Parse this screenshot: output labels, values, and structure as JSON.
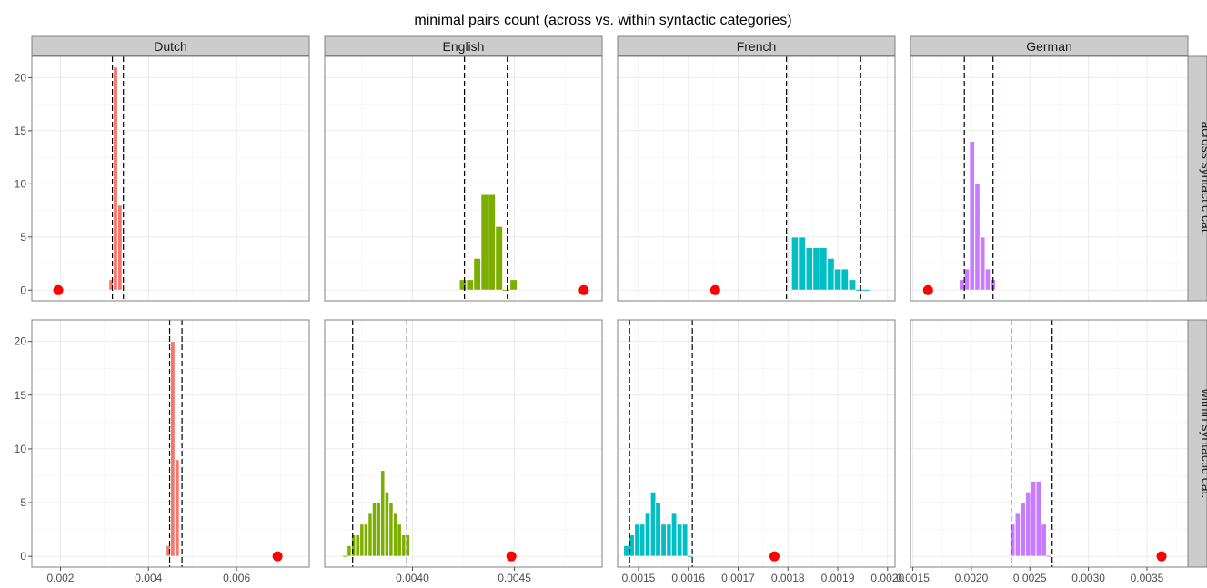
{
  "chart_data": {
    "type": "histogram-facet",
    "title": "minimal pairs count (across vs. within syntactic categories)",
    "columns": [
      "Dutch",
      "English",
      "French",
      "German"
    ],
    "rows": [
      "across syntactic cat.",
      "within syntactic cat."
    ],
    "ylim": [
      -1,
      22
    ],
    "y_ticks": [
      0,
      5,
      10,
      15,
      20
    ],
    "grid": true,
    "colors": {
      "Dutch": "#F8766D",
      "English": "#7CAE00",
      "French": "#00BFC4",
      "German": "#C77CFF",
      "point": "#FF0000",
      "vline": "#000000"
    },
    "x_axes": [
      {
        "range": [
          0.00135,
          0.00765
        ],
        "ticks": [
          0.002,
          0.004,
          0.006
        ],
        "tick_labels": [
          "0.002",
          "0.004",
          "0.006"
        ]
      },
      {
        "range": [
          0.00357,
          0.00493
        ],
        "ticks": [
          0.004,
          0.0045
        ],
        "tick_labels": [
          "0.0040",
          "0.0045"
        ]
      },
      {
        "range": [
          0.001458,
          0.002015
        ],
        "ticks": [
          0.0015,
          0.0016,
          0.0017,
          0.0018,
          0.0019,
          0.002
        ],
        "tick_labels": [
          "0.0015",
          "0.0016",
          "0.0017",
          "0.0018",
          "0.0019",
          "0.0020"
        ]
      },
      {
        "range": [
          0.00148,
          0.00385
        ],
        "ticks": [
          0.0015,
          0.002,
          0.0025,
          0.003,
          0.0035
        ],
        "tick_labels": [
          "0.0015",
          "0.0020",
          "0.0025",
          "0.0030",
          "0.0035"
        ]
      }
    ],
    "panels": [
      {
        "language": "Dutch",
        "row": "across syntactic cat.",
        "binwidth": 0.0001,
        "bin_starts": [
          0.0031,
          0.0032,
          0.0033
        ],
        "counts": [
          1,
          21,
          8
        ],
        "vlines": [
          0.00318,
          0.00343
        ],
        "point": 0.00195
      },
      {
        "language": "English",
        "row": "across syntactic cat.",
        "binwidth": 3.55e-05,
        "bin_starts": [
          0.00423,
          0.004265,
          0.0043,
          0.004336,
          0.004371,
          0.004407,
          0.004442,
          0.004478
        ],
        "counts": [
          1,
          1,
          3,
          9,
          9,
          6,
          0,
          1
        ],
        "vlines": [
          0.004255,
          0.004465
        ],
        "point": 0.00484
      },
      {
        "language": "French",
        "row": "across syntactic cat.",
        "binwidth": 1.435e-05,
        "bin_starts": [
          0.001807,
          0.001821,
          0.001836,
          0.00185,
          0.001864,
          0.001879,
          0.001893,
          0.001907,
          0.001922,
          0.001936,
          0.00195
        ],
        "counts": [
          5,
          5,
          4,
          4,
          4,
          3,
          2,
          2,
          1,
          0,
          0
        ],
        "vlines": [
          0.001797,
          0.001946
        ],
        "point": 0.001654
      },
      {
        "language": "German",
        "row": "across syntactic cat.",
        "binwidth": 4.45e-05,
        "bin_starts": [
          0.001895,
          0.00194,
          0.001984,
          0.002029,
          0.002073,
          0.002118,
          0.002162
        ],
        "counts": [
          1,
          2,
          14,
          10,
          5,
          2,
          1
        ],
        "vlines": [
          0.00194,
          0.002185
        ],
        "point": 0.00163
      },
      {
        "language": "Dutch",
        "row": "within syntactic cat.",
        "binwidth": 0.0001,
        "bin_starts": [
          0.0044,
          0.0045,
          0.0046
        ],
        "counts": [
          1,
          20,
          9
        ],
        "vlines": [
          0.00448,
          0.00476
        ],
        "point": 0.00693
      },
      {
        "language": "English",
        "row": "within syntactic cat.",
        "binwidth": 2.05e-05,
        "bin_starts": [
          0.00366,
          0.00368,
          0.003701,
          0.003721,
          0.003742,
          0.003762,
          0.003783,
          0.003803,
          0.003824,
          0.003844,
          0.003865,
          0.003885,
          0.003906,
          0.003926,
          0.003947,
          0.003967
        ],
        "counts": [
          0,
          1,
          2,
          2,
          3,
          3,
          4,
          5,
          5,
          8,
          6,
          5,
          4,
          3,
          2,
          2
        ],
        "vlines": [
          0.003707,
          0.003973
        ],
        "point": 0.004485
      },
      {
        "language": "French",
        "row": "within syntactic cat.",
        "binwidth": 1.07e-05,
        "bin_starts": [
          0.00147,
          0.001481,
          0.001492,
          0.001502,
          0.001513,
          0.001524,
          0.001534,
          0.001545,
          0.001556,
          0.001566,
          0.001577,
          0.001588,
          0.001598
        ],
        "counts": [
          1,
          2,
          3,
          3,
          4,
          6,
          5,
          3,
          3,
          4,
          3,
          3,
          0
        ],
        "vlines": [
          0.001482,
          0.001608
        ],
        "point": 0.001773
      },
      {
        "language": "German",
        "row": "within syntactic cat.",
        "binwidth": 4.45e-05,
        "bin_starts": [
          0.00233,
          0.002374,
          0.002419,
          0.002463,
          0.002508,
          0.002552,
          0.002597,
          0.002641
        ],
        "counts": [
          3,
          4,
          5,
          6,
          7,
          7,
          3,
          0
        ],
        "vlines": [
          0.00234,
          0.00269
        ],
        "point": 0.003625
      }
    ]
  }
}
